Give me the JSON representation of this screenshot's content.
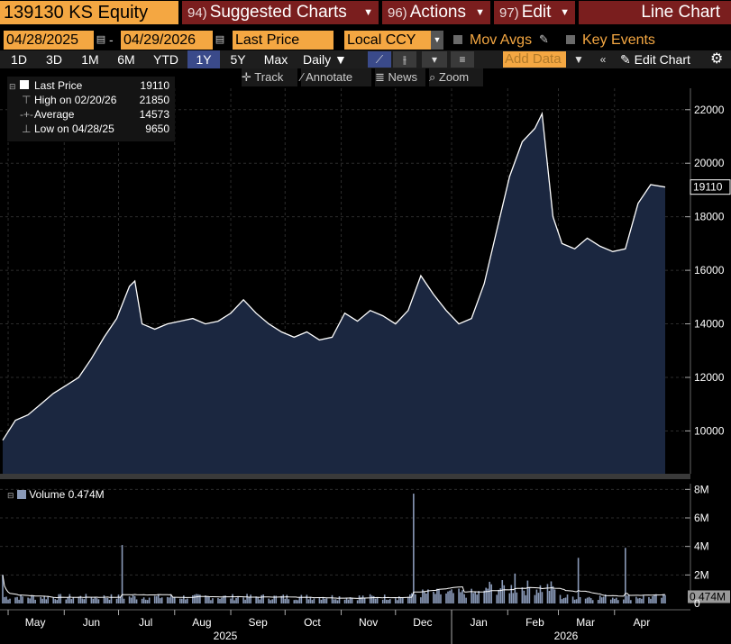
{
  "header": {
    "ticker": "139130 KS Equity",
    "menus": [
      {
        "num": "94)",
        "label": "Suggested Charts"
      },
      {
        "num": "96)",
        "label": "Actions"
      },
      {
        "num": "97)",
        "label": "Edit"
      }
    ],
    "chart_type": "Line Chart"
  },
  "controls": {
    "start_date": "04/28/2025",
    "end_date": "04/29/2026",
    "field": "Last Price",
    "currency": "Local CCY",
    "mov_avgs": "Mov Avgs",
    "key_events": "Key Events",
    "periods": [
      "1D",
      "3D",
      "1M",
      "6M",
      "YTD",
      "1Y",
      "5Y",
      "Max"
    ],
    "selected_period": "1Y",
    "frequency": "Daily",
    "add_data_placeholder": "Add Data",
    "edit_chart": "Edit Chart"
  },
  "toolbar": {
    "track": "Track",
    "annotate": "Annotate",
    "news": "News",
    "zoom": "Zoom"
  },
  "legend": {
    "last_price_label": "Last Price",
    "last_price_value": "19110",
    "high_label": "High on 02/20/26",
    "high_value": "21850",
    "average_label": "Average",
    "average_value": "14573",
    "low_label": "Low on 04/28/25",
    "low_value": "9650"
  },
  "volume_legend": {
    "label": "Volume",
    "value": "0.474M"
  },
  "colors": {
    "area_fill": "#1b2740",
    "line": "#ffffff",
    "volume_bar": "#8a9ab8",
    "accent_orange": "#f4a742",
    "menu_red": "#7a1e1e"
  },
  "chart_data": [
    {
      "type": "area",
      "series": [
        {
          "name": "Last Price",
          "x": [
            "2025-04-28",
            "2025-05-05",
            "2025-05-12",
            "2025-05-19",
            "2025-05-26",
            "2025-06-02",
            "2025-06-09",
            "2025-06-16",
            "2025-06-23",
            "2025-06-30",
            "2025-07-07",
            "2025-07-10",
            "2025-07-14",
            "2025-07-21",
            "2025-07-28",
            "2025-08-04",
            "2025-08-11",
            "2025-08-18",
            "2025-08-25",
            "2025-09-01",
            "2025-09-08",
            "2025-09-15",
            "2025-09-22",
            "2025-09-29",
            "2025-10-06",
            "2025-10-13",
            "2025-10-20",
            "2025-10-27",
            "2025-11-03",
            "2025-11-10",
            "2025-11-17",
            "2025-11-24",
            "2025-12-01",
            "2025-12-08",
            "2025-12-15",
            "2025-12-22",
            "2025-12-29",
            "2026-01-05",
            "2026-01-12",
            "2026-01-19",
            "2026-01-26",
            "2026-02-02",
            "2026-02-09",
            "2026-02-16",
            "2026-02-20",
            "2026-02-26",
            "2026-03-03",
            "2026-03-10",
            "2026-03-17",
            "2026-03-24",
            "2026-03-31",
            "2026-04-07",
            "2026-04-14",
            "2026-04-21",
            "2026-04-29"
          ],
          "values": [
            9650,
            10400,
            10600,
            11000,
            11400,
            11700,
            12000,
            12700,
            13500,
            14200,
            15400,
            15600,
            14000,
            13800,
            14000,
            14100,
            14200,
            14000,
            14100,
            14400,
            14900,
            14400,
            14000,
            13700,
            13500,
            13700,
            13400,
            13500,
            14400,
            14100,
            14500,
            14300,
            14000,
            14500,
            15800,
            15100,
            14500,
            14000,
            14200,
            15500,
            17500,
            19500,
            20800,
            21300,
            21850,
            18000,
            17000,
            16800,
            17200,
            16900,
            16700,
            16800,
            18500,
            19200,
            19110
          ]
        }
      ],
      "ylim": [
        8400,
        22800
      ],
      "yticks": [
        10000,
        12000,
        14000,
        16000,
        18000,
        20000,
        22000
      ],
      "last_value_label": "19110"
    },
    {
      "type": "bar",
      "series": [
        {
          "name": "Volume"
        }
      ],
      "spikes": [
        {
          "date": "2025-04-28",
          "value": 2000000
        },
        {
          "date": "2025-07-03",
          "value": 4100000
        },
        {
          "date": "2025-12-11",
          "value": 7700000
        },
        {
          "date": "2026-02-05",
          "value": 2100000
        },
        {
          "date": "2026-03-12",
          "value": 3200000
        },
        {
          "date": "2026-04-07",
          "value": 3900000
        }
      ],
      "baseline_value": 474000,
      "ylim": [
        0,
        8400000
      ],
      "ytick_labels": [
        "2M",
        "4M",
        "6M",
        "8M"
      ],
      "yticks": [
        2000000,
        4000000,
        6000000,
        8000000
      ],
      "last_value_label": "0.474M"
    }
  ],
  "x_axis": {
    "months": [
      "May",
      "Jun",
      "Jul",
      "Aug",
      "Sep",
      "Oct",
      "Nov",
      "Dec",
      "Jan",
      "Feb",
      "Mar",
      "Apr"
    ],
    "years": [
      "2025",
      "2026"
    ]
  }
}
